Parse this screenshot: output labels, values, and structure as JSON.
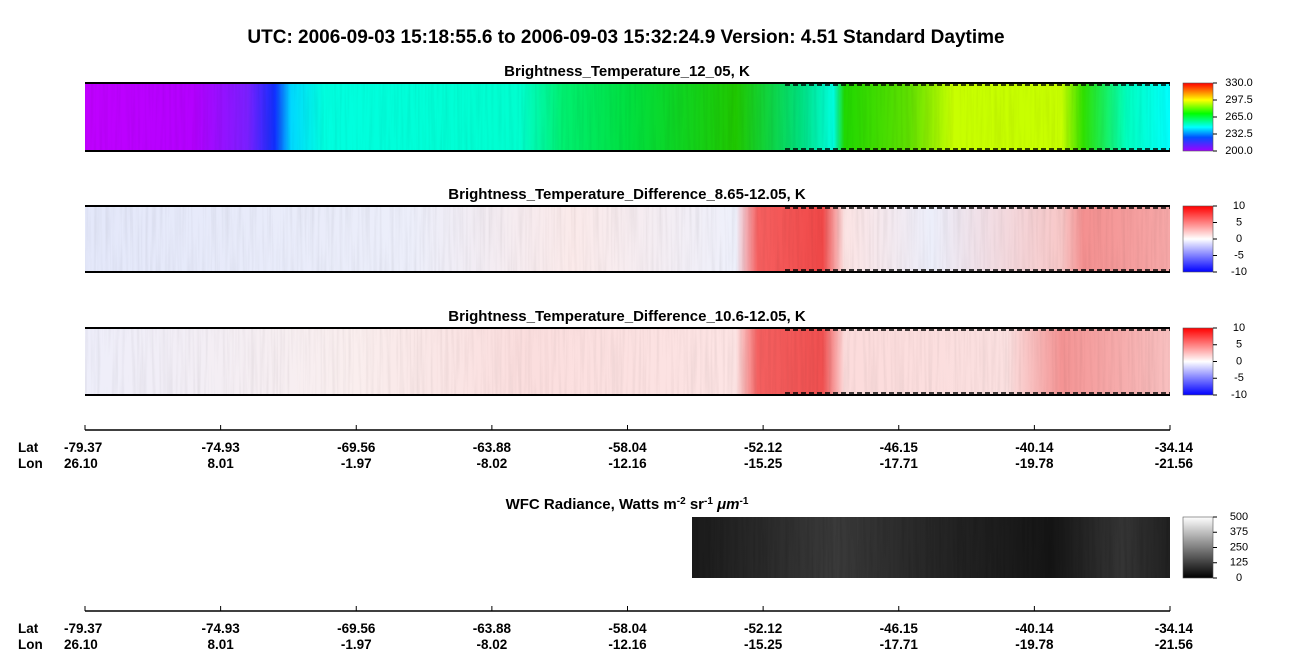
{
  "title": "UTC:  2006-09-03   15:18:55.6  to  2006-09-03   15:32:24.9    Version: 4.51  Standard Daytime",
  "panels": [
    {
      "title": "Brightness_Temperature_12_05, K",
      "clim": [
        200,
        330
      ],
      "ticks": [
        {
          "value": 330,
          "label": "330.0"
        },
        {
          "value": 297.5,
          "label": "297.5"
        },
        {
          "value": 265,
          "label": "265.0"
        },
        {
          "value": 232.5,
          "label": "232.5"
        },
        {
          "value": 200,
          "label": "200.0"
        }
      ]
    },
    {
      "title": "Brightness_Temperature_Difference_8.65-12.05, K",
      "clim": [
        -10,
        10
      ],
      "ticks": [
        10,
        5,
        0,
        -5,
        -10
      ]
    },
    {
      "title": "Brightness_Temperature_Difference_10.6-12.05, K",
      "clim": [
        -10,
        10
      ],
      "ticks": [
        10,
        5,
        0,
        -5,
        -10
      ]
    },
    {
      "title_parts": [
        "WFC Radiance, Watts m",
        "-2",
        " sr",
        "-1",
        " ",
        "μm",
        "-1"
      ],
      "clim": [
        0,
        500
      ],
      "ticks": [
        500,
        375,
        250,
        125,
        0
      ]
    }
  ],
  "axes": [
    {
      "lat_label": "Lat",
      "lon_label": "Lon",
      "lat": [
        "-79.37",
        "-74.93",
        "-69.56",
        "-63.88",
        "-58.04",
        "-52.12",
        "-46.15",
        "-40.14",
        "-34.14"
      ],
      "lon": [
        "26.10",
        "8.01",
        "-1.97",
        "-8.02",
        "-12.16",
        "-15.25",
        "-17.71",
        "-19.78",
        "-21.56"
      ]
    },
    {
      "lat_label": "Lat",
      "lon_label": "Lon",
      "lat": [
        "-79.37",
        "-74.93",
        "-69.56",
        "-63.88",
        "-58.04",
        "-52.12",
        "-46.15",
        "-40.14",
        "-34.14"
      ],
      "lon": [
        "26.10",
        "8.01",
        "-1.97",
        "-8.02",
        "-12.16",
        "-15.25",
        "-17.71",
        "-19.78",
        "-21.56"
      ]
    }
  ]
}
